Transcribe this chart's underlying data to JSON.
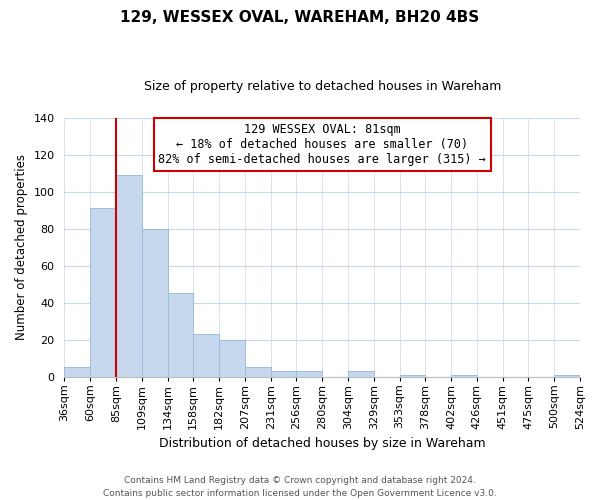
{
  "title": "129, WESSEX OVAL, WAREHAM, BH20 4BS",
  "subtitle": "Size of property relative to detached houses in Wareham",
  "xlabel": "Distribution of detached houses by size in Wareham",
  "ylabel": "Number of detached properties",
  "bar_color": "#c5d8ee",
  "bar_edge_color": "#a0bcd8",
  "bins": [
    "36sqm",
    "60sqm",
    "85sqm",
    "109sqm",
    "134sqm",
    "158sqm",
    "182sqm",
    "207sqm",
    "231sqm",
    "256sqm",
    "280sqm",
    "304sqm",
    "329sqm",
    "353sqm",
    "378sqm",
    "402sqm",
    "426sqm",
    "451sqm",
    "475sqm",
    "500sqm",
    "524sqm"
  ],
  "values": [
    5,
    91,
    109,
    80,
    45,
    23,
    20,
    5,
    3,
    3,
    0,
    3,
    0,
    1,
    0,
    1,
    0,
    0,
    0,
    1
  ],
  "ylim": [
    0,
    140
  ],
  "yticks": [
    0,
    20,
    40,
    60,
    80,
    100,
    120,
    140
  ],
  "property_line_bin_index": 2,
  "annotation_title": "129 WESSEX OVAL: 81sqm",
  "annotation_line1": "← 18% of detached houses are smaller (70)",
  "annotation_line2": "82% of semi-detached houses are larger (315) →",
  "footer_line1": "Contains HM Land Registry data © Crown copyright and database right 2024.",
  "footer_line2": "Contains public sector information licensed under the Open Government Licence v3.0.",
  "bg_color": "#ffffff",
  "grid_color": "#c8d8e8",
  "property_line_color": "#cc0000",
  "title_fontsize": 11,
  "subtitle_fontsize": 9,
  "ylabel_fontsize": 8.5,
  "xlabel_fontsize": 9,
  "tick_fontsize": 8,
  "annotation_fontsize": 8.5,
  "footer_fontsize": 6.5
}
